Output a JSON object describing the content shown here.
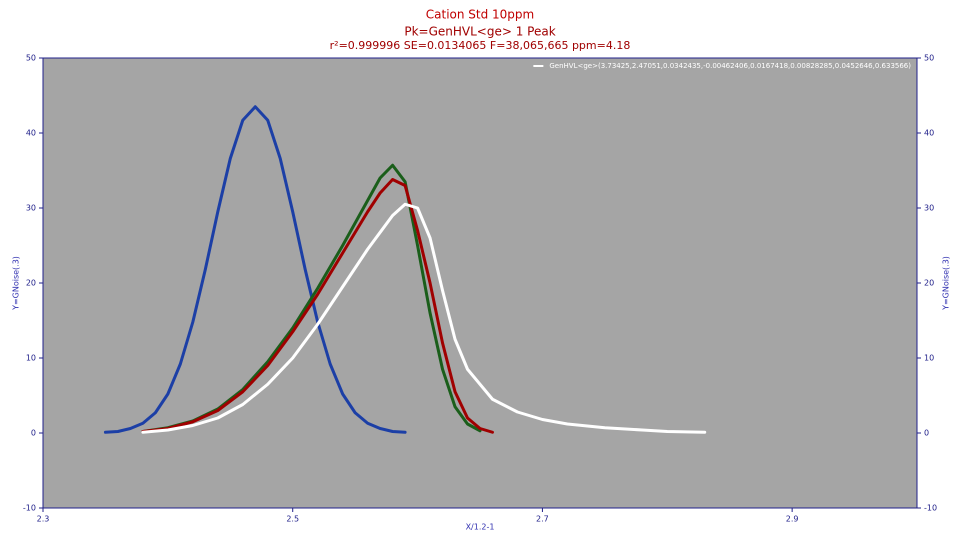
{
  "chart_data": {
    "type": "line",
    "title": "Cation Std 10ppm",
    "subtitle": "Pk=GenHVL<ge>  1 Peak",
    "stats": "r²=0.999996  SE=0.0134065  F=38,065,665  ppm=4.18",
    "xlabel": "X/1.2-1",
    "ylabel": "Y=GNoise(.3)",
    "y2label": "Y=GNoise(.3)",
    "xlim": [
      2.3,
      3.0
    ],
    "xticks": [
      2.3,
      2.5,
      2.7,
      2.9
    ],
    "ylim": [
      -10,
      50
    ],
    "yticks": [
      -10,
      0,
      10,
      20,
      30,
      40,
      50
    ],
    "y2lim": [
      -10,
      50
    ],
    "y2ticks": [
      -10,
      0,
      10,
      20,
      30,
      40,
      50
    ],
    "plot_background": "#a5a5a5",
    "legend": "top-right",
    "series": [
      {
        "color": "#1c3fa6",
        "x": [
          2.35,
          2.36,
          2.37,
          2.38,
          2.39,
          2.4,
          2.41,
          2.42,
          2.43,
          2.44,
          2.45,
          2.46,
          2.47,
          2.48,
          2.49,
          2.5,
          2.51,
          2.52,
          2.53,
          2.54,
          2.55,
          2.56,
          2.57,
          2.58,
          2.59
        ],
        "values": [
          0.1,
          0.2,
          0.6,
          1.3,
          2.7,
          5.2,
          9.2,
          14.8,
          21.8,
          29.5,
          36.6,
          41.7,
          43.5,
          41.7,
          36.6,
          29.5,
          21.8,
          14.8,
          9.2,
          5.2,
          2.7,
          1.3,
          0.6,
          0.2,
          0.1
        ]
      },
      {
        "color": "#1a5e1a",
        "x": [
          2.38,
          2.4,
          2.42,
          2.44,
          2.46,
          2.48,
          2.5,
          2.52,
          2.54,
          2.56,
          2.57,
          2.58,
          2.59,
          2.6,
          2.61,
          2.62,
          2.63,
          2.64,
          2.65
        ],
        "values": [
          0.2,
          0.7,
          1.6,
          3.2,
          5.8,
          9.5,
          14,
          19.3,
          25,
          31,
          34,
          35.7,
          33.5,
          25,
          16,
          8.5,
          3.5,
          1.2,
          0.3
        ]
      },
      {
        "color": "#a00000",
        "x": [
          2.38,
          2.4,
          2.42,
          2.44,
          2.46,
          2.48,
          2.5,
          2.52,
          2.54,
          2.56,
          2.57,
          2.58,
          2.59,
          2.6,
          2.61,
          2.62,
          2.63,
          2.64,
          2.65,
          2.66
        ],
        "values": [
          0.2,
          0.6,
          1.5,
          3.0,
          5.5,
          9,
          13.5,
          18.5,
          24,
          29.5,
          32,
          33.8,
          33,
          27,
          20,
          12,
          5.5,
          2,
          0.6,
          0.1
        ]
      },
      {
        "name": "GenHVL<ge>(3.73425,2.47051,0.0342435,-0.00462406,0.0167418,0.00828285,0.0452646,0.633566)",
        "color": "#ffffff",
        "x": [
          2.38,
          2.4,
          2.42,
          2.44,
          2.46,
          2.48,
          2.5,
          2.52,
          2.54,
          2.56,
          2.58,
          2.59,
          2.6,
          2.61,
          2.62,
          2.63,
          2.64,
          2.66,
          2.68,
          2.7,
          2.72,
          2.75,
          2.78,
          2.8,
          2.83
        ],
        "values": [
          0.1,
          0.4,
          1,
          2,
          3.8,
          6.5,
          10,
          14.5,
          19.5,
          24.5,
          29,
          30.5,
          30,
          26,
          19,
          12.5,
          8.5,
          4.5,
          2.8,
          1.8,
          1.2,
          0.7,
          0.4,
          0.2,
          0.1
        ]
      }
    ]
  }
}
